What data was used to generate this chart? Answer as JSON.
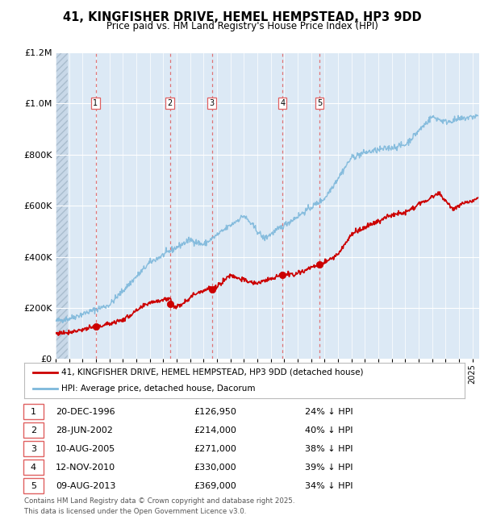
{
  "title": "41, KINGFISHER DRIVE, HEMEL HEMPSTEAD, HP3 9DD",
  "subtitle": "Price paid vs. HM Land Registry's House Price Index (HPI)",
  "legend_label_red": "41, KINGFISHER DRIVE, HEMEL HEMPSTEAD, HP3 9DD (detached house)",
  "legend_label_blue": "HPI: Average price, detached house, Dacorum",
  "footer": "Contains HM Land Registry data © Crown copyright and database right 2025.\nThis data is licensed under the Open Government Licence v3.0.",
  "transactions": [
    {
      "num": 1,
      "x_year": 1996.97,
      "price": 126950
    },
    {
      "num": 2,
      "x_year": 2002.49,
      "price": 214000
    },
    {
      "num": 3,
      "x_year": 2005.61,
      "price": 271000
    },
    {
      "num": 4,
      "x_year": 2010.87,
      "price": 330000
    },
    {
      "num": 5,
      "x_year": 2013.61,
      "price": 369000
    }
  ],
  "table_rows": [
    {
      "num": 1,
      "date": "20-DEC-1996",
      "price": "£126,950",
      "pct": "24% ↓ HPI"
    },
    {
      "num": 2,
      "date": "28-JUN-2002",
      "price": "£214,000",
      "pct": "40% ↓ HPI"
    },
    {
      "num": 3,
      "date": "10-AUG-2005",
      "price": "£271,000",
      "pct": "38% ↓ HPI"
    },
    {
      "num": 4,
      "date": "12-NOV-2010",
      "price": "£330,000",
      "pct": "39% ↓ HPI"
    },
    {
      "num": 5,
      "date": "09-AUG-2013",
      "price": "£369,000",
      "pct": "34% ↓ HPI"
    }
  ],
  "ylim": [
    0,
    1200000
  ],
  "xlim_start": 1994.0,
  "xlim_end": 2025.5,
  "yticks": [
    0,
    200000,
    400000,
    600000,
    800000,
    1000000,
    1200000
  ],
  "plot_bg": "#dce9f5",
  "red_color": "#cc0000",
  "blue_color": "#7db8db",
  "grid_color": "#ffffff",
  "vline_color": "#e06060"
}
